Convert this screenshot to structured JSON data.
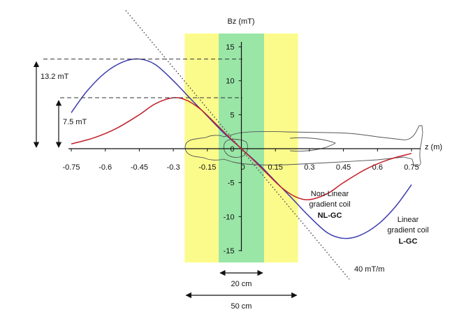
{
  "chart_data": {
    "type": "line",
    "ylabel": "Bz (mT)",
    "xlabel": "z (m)",
    "xlim": [
      -0.75,
      0.75
    ],
    "ylim": [
      -15,
      15
    ],
    "x_ticks": [
      "-0.75",
      "-0.6",
      "-0.45",
      "-0.3",
      "-0.15",
      "0",
      "0.15",
      "0.3",
      "0.45",
      "0.6",
      "0.75"
    ],
    "y_ticks": [
      "15",
      "10",
      "5",
      "0",
      "-5",
      "-10",
      "-15"
    ],
    "series": [
      {
        "name": "Linear gradient coil L-GC",
        "color": "#3b3bb0",
        "x": [
          -0.75,
          -0.68,
          -0.6,
          -0.52,
          -0.45,
          -0.38,
          -0.3,
          -0.22,
          -0.15,
          -0.08,
          0,
          0.08,
          0.15,
          0.22,
          0.3,
          0.38,
          0.45,
          0.52,
          0.6,
          0.68,
          0.75
        ],
        "y": [
          5.3,
          8.5,
          11.2,
          12.8,
          13.2,
          12.4,
          10.0,
          7.2,
          4.8,
          2.4,
          0,
          -2.4,
          -4.8,
          -7.2,
          -10.0,
          -12.4,
          -13.2,
          -12.8,
          -11.2,
          -8.5,
          -5.3
        ]
      },
      {
        "name": "Non-Linear gradient coil NL-GC",
        "color": "#c21f2a",
        "x": [
          -0.75,
          -0.65,
          -0.55,
          -0.45,
          -0.38,
          -0.3,
          -0.24,
          -0.18,
          -0.12,
          -0.06,
          0,
          0.06,
          0.12,
          0.18,
          0.24,
          0.3,
          0.38,
          0.45,
          0.55,
          0.65,
          0.75
        ],
        "y": [
          0.7,
          1.6,
          3.0,
          5.0,
          6.6,
          7.5,
          7.1,
          5.8,
          3.9,
          1.9,
          0,
          -1.9,
          -3.9,
          -5.8,
          -7.1,
          -7.5,
          -6.6,
          -5.0,
          -3.0,
          -1.6,
          -0.7
        ]
      }
    ],
    "reference_line": {
      "label": "40 mT/m",
      "slope": -40
    },
    "regions": [
      {
        "label": "50 cm",
        "x": [
          -0.25,
          0.25
        ],
        "color": "#fbfb8c"
      },
      {
        "label": "20 cm",
        "x": [
          -0.1,
          0.1
        ],
        "color": "#99e6a6"
      }
    ],
    "annotations": {
      "lgc_peak": {
        "label": "13.2 mT",
        "value": 13.2
      },
      "nlgc_peak": {
        "label": "7.5 mT",
        "value": 7.5
      },
      "nlgc_label": [
        "Non-Linear",
        "gradient coil",
        "NL-GC"
      ],
      "lgc_label": [
        "Linear",
        "gradient coil",
        "L-GC"
      ]
    }
  }
}
